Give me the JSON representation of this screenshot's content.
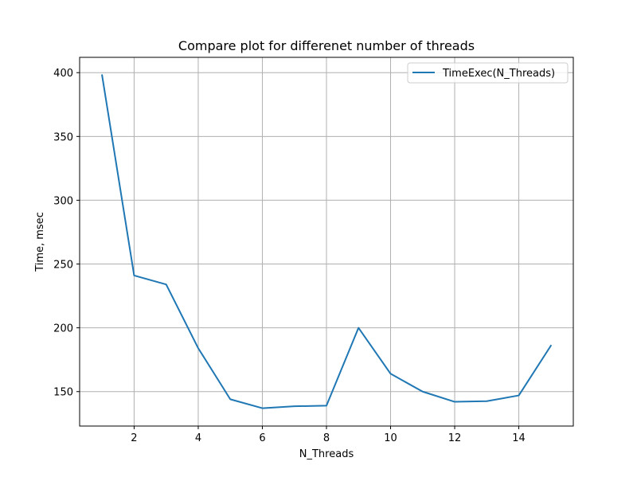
{
  "chart_data": {
    "type": "line",
    "title": "Compare plot for differenet number of threads",
    "xlabel": "N_Threads",
    "ylabel": "Time, msec",
    "xlim": [
      0.3,
      15.7
    ],
    "ylim": [
      123,
      412
    ],
    "x_ticks": [
      2,
      4,
      6,
      8,
      10,
      12,
      14
    ],
    "y_ticks": [
      150,
      200,
      250,
      300,
      350,
      400
    ],
    "grid": true,
    "legend_position": "top-right",
    "series": [
      {
        "name": "TimeExec(N_Threads)",
        "color": "#1f77b4",
        "x": [
          1,
          2,
          3,
          4,
          5,
          6,
          7,
          8,
          9,
          10,
          11,
          12,
          13,
          14,
          15
        ],
        "y": [
          398,
          241,
          234,
          184,
          144,
          137,
          138.5,
          139,
          200,
          164,
          150,
          142,
          142.5,
          147,
          186
        ]
      }
    ]
  }
}
